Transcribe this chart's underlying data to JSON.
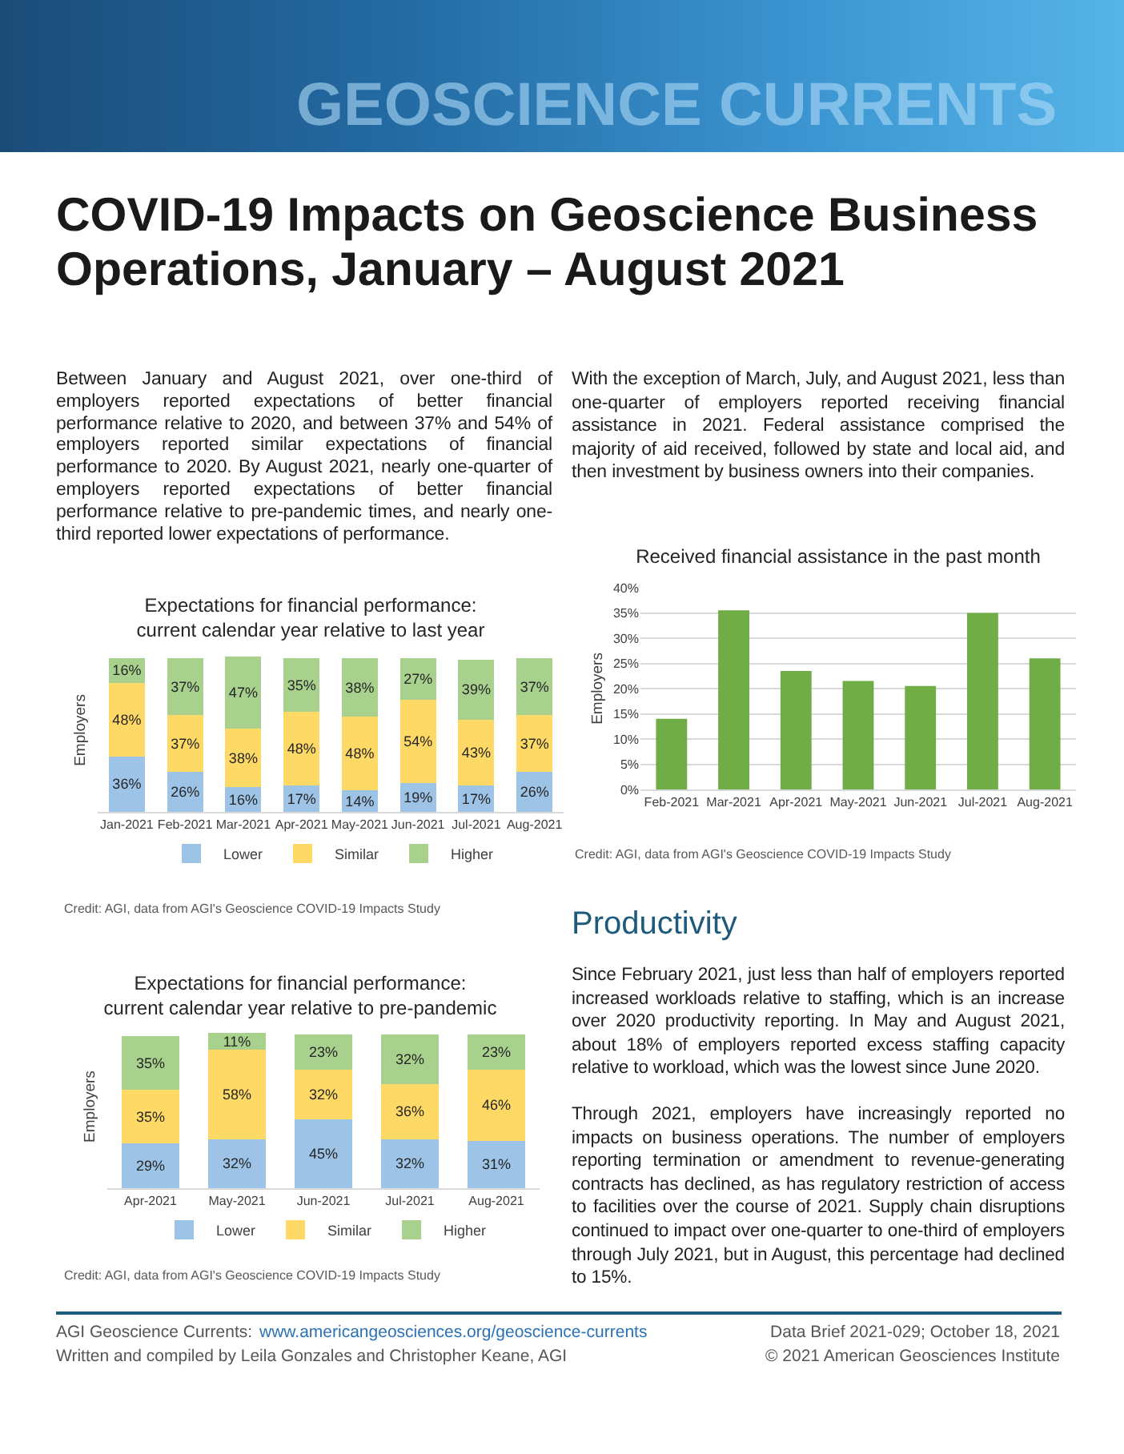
{
  "chart_data": [
    {
      "type": "other",
      "title": "GEOSCIENCE CURRENTS"
    },
    {
      "type": "other",
      "title": "COVID-19 Impacts on Geoscience Business Operations, January – August 2021",
      "annotations": [
        "Between January and August 2021, over one-third of employers reported expectations of better financial performance relative to 2020, and between 37% and 54% of employers reported similar expectations of financial performance to 2020. By August 2021, nearly one-quarter of employers reported expectations of better financial performance relative to pre-pandemic times, and nearly one-third reported lower expectations of performance.",
        "With the exception of March, July, and August 2021, less than one-quarter of employers reported receiving financial assistance in 2021. Federal assistance comprised the majority of aid received, followed by state and local aid, and then investment by business owners into their companies."
      ]
    },
    {
      "type": "bar",
      "title": "Expectations for financial performance: current calendar year relative to last year",
      "ylabel": "Employers",
      "categories": [
        "Jan-2021",
        "Feb-2021",
        "Mar-2021",
        "Apr-2021",
        "May-2021",
        "Jun-2021",
        "Jul-2021",
        "Aug-2021"
      ],
      "stacked": true,
      "series": [
        {
          "name": "Lower",
          "color": "#9dc3e6",
          "values": [
            36,
            26,
            16,
            17,
            14,
            19,
            17,
            26
          ],
          "value_labels": [
            "36%",
            "26%",
            "16%",
            "17%",
            "14%",
            "19%",
            "17%",
            "26%"
          ]
        },
        {
          "name": "Similar",
          "color": "#ffd966",
          "values": [
            48,
            37,
            38,
            48,
            48,
            54,
            43,
            37
          ],
          "value_labels": [
            "48%",
            "37%",
            "38%",
            "48%",
            "48%",
            "54%",
            "43%",
            "37%"
          ]
        },
        {
          "name": "Higher",
          "color": "#a9d18e",
          "values": [
            16,
            37,
            47,
            35,
            38,
            27,
            39,
            37
          ],
          "value_labels": [
            "16%",
            "37%",
            "47%",
            "35%",
            "38%",
            "27%",
            "39%",
            "37%"
          ]
        }
      ],
      "legend": "bottom",
      "tick_labels": "x",
      "annotations": [
        "Credit: AGI, data from AGI's Geoscience COVID-19 Impacts Study"
      ]
    },
    {
      "type": "bar",
      "title": "Received financial assistance in the past month",
      "ylabel": "Employers",
      "categories": [
        "Feb-2021",
        "Mar-2021",
        "Apr-2021",
        "May-2021",
        "Jun-2021",
        "Jul-2021",
        "Aug-2021"
      ],
      "values": [
        14,
        35.5,
        23.5,
        21.5,
        20.5,
        35,
        26
      ],
      "color": "#70ad47",
      "ylim": [
        0,
        40
      ],
      "yticks": [
        {
          "value": 0,
          "label": "0%"
        },
        {
          "value": 5,
          "label": "5%"
        },
        {
          "value": 10,
          "label": "10%"
        },
        {
          "value": 15,
          "label": "15%"
        },
        {
          "value": 20,
          "label": "20%"
        },
        {
          "value": 25,
          "label": "25%"
        },
        {
          "value": 30,
          "label": "30%"
        },
        {
          "value": 35,
          "label": "35%"
        },
        {
          "value": 40,
          "label": "40%"
        }
      ],
      "grid": "y",
      "annotations": [
        "Credit: AGI, data from AGI's Geoscience COVID-19 Impacts Study"
      ]
    },
    {
      "type": "bar",
      "title": "Expectations for financial performance: current calendar year relative to pre-pandemic",
      "ylabel": "Employers",
      "categories": [
        "Apr-2021",
        "May-2021",
        "Jun-2021",
        "Jul-2021",
        "Aug-2021"
      ],
      "stacked": true,
      "series": [
        {
          "name": "Lower",
          "color": "#9dc3e6",
          "values": [
            29,
            32,
            45,
            32,
            31
          ],
          "value_labels": [
            "29%",
            "32%",
            "45%",
            "32%",
            "31%"
          ]
        },
        {
          "name": "Similar",
          "color": "#ffd966",
          "values": [
            35,
            58,
            32,
            36,
            46
          ],
          "value_labels": [
            "35%",
            "58%",
            "32%",
            "36%",
            "46%"
          ]
        },
        {
          "name": "Higher",
          "color": "#a9d18e",
          "values": [
            35,
            11,
            23,
            32,
            23
          ],
          "value_labels": [
            "35%",
            "11%",
            "23%",
            "32%",
            "23%"
          ]
        }
      ],
      "legend": "bottom",
      "tick_labels": "x",
      "annotations": [
        "Credit: AGI, data from AGI's Geoscience COVID-19 Impacts Study"
      ]
    },
    {
      "type": "other",
      "title": "Productivity",
      "annotations": [
        "Since February 2021, just less than half of employers reported increased workloads relative to staffing, which is an increase over 2020 productivity reporting. In May and August 2021, about 18% of employers reported excess staffing capacity relative to workload, which was the lowest since June 2020.",
        "Through 2021, employers have increasingly reported no impacts on business operations. The number of employers reporting termination or amendment to revenue-generating contracts has declined, as has regulatory restriction of access to facilities over the course of 2021. Supply chain disruptions continued to impact over one-quarter to one-third of employers through July 2021, but in August, this percentage had declined to 15%."
      ]
    },
    {
      "type": "other",
      "annotations": [
        "AGI Geoscience Currents:",
        "www.americangeosciences.org/geoscience-currents",
        "Written and compiled by Leila Gonzales and Christopher Keane, AGI",
        "Data Brief 2021-029; October 18, 2021",
        "© 2021 American Geosciences Institute"
      ]
    }
  ]
}
